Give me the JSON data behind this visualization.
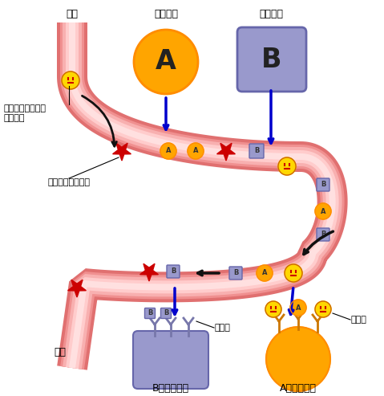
{
  "bg_color": "#ffffff",
  "vessel_outer_color": "#e87070",
  "vessel_mid_color": "#f09090",
  "vessel_light_color": "#f8b0b0",
  "vessel_inner_color": "#ffcccc",
  "hormone_A_color": "#FFA500",
  "hormone_A_dark": "#FF8C00",
  "hormone_B_color": "#9999cc",
  "hormone_B_border": "#6666aa",
  "star_color": "#cc0000",
  "smiley_face_color": "#FFD700",
  "smiley_border_color": "#cc6600",
  "smiley_eye_color": "#cc0000",
  "arrow_color": "#0000cc",
  "black_arrow_color": "#111111",
  "receptor_B_color": "#7777aa",
  "receptor_A_color": "#cc7700",
  "text_color": "#000000",
  "label_chikkan": "かく乱作用を持つ\n化学物質",
  "label_sonota": "その他の化学物質",
  "label_blood1": "血管",
  "label_blood2": "血管",
  "label_naibunpi1": "内分泌線",
  "label_naibunpi2": "内分泌線",
  "label_juyotai": "受容体",
  "label_B_cell": "Bの標的細脹",
  "label_A_cell": "Aの標的細脹"
}
